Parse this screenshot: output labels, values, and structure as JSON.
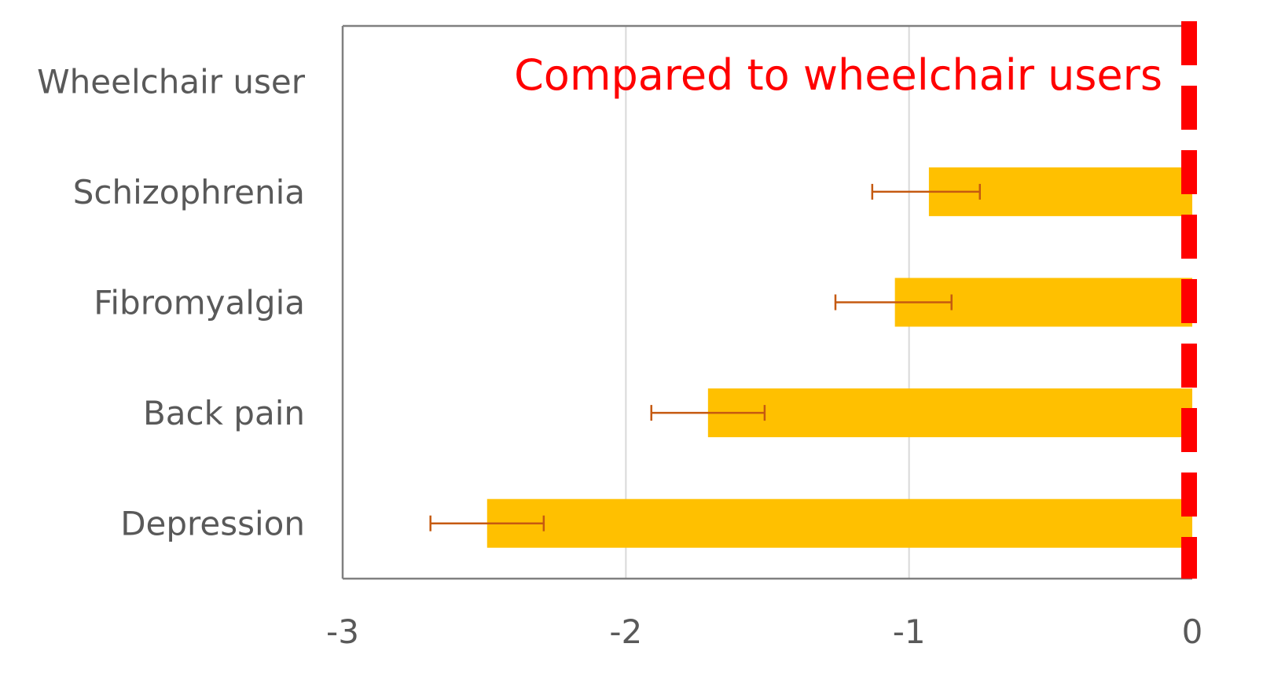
{
  "chart_data": {
    "type": "bar",
    "orientation": "horizontal",
    "categories": [
      "Wheelchair user",
      "Schizophrenia",
      "Fibromyalgia",
      "Back pain",
      "Depression"
    ],
    "values": [
      0,
      -0.93,
      -1.05,
      -1.71,
      -2.49
    ],
    "error_low": [
      null,
      -1.13,
      -1.26,
      -1.91,
      -2.69
    ],
    "error_high": [
      null,
      -0.75,
      -0.85,
      -1.51,
      -2.29
    ],
    "xlim": [
      -3,
      0
    ],
    "xticks": [
      "-3",
      "-2",
      "-1",
      "0"
    ],
    "xtick_values": [
      -3,
      -2,
      -1,
      0
    ],
    "grid": true,
    "annotation": "Compared to wheelchair users",
    "reference_line": 0,
    "colors": {
      "bar": "#FFC000",
      "error": "#C55A11",
      "reference": "#FF0000",
      "annotation": "#FF0000",
      "grid": "#D9D9D9",
      "axis": "#808080",
      "text": "#595959"
    }
  }
}
